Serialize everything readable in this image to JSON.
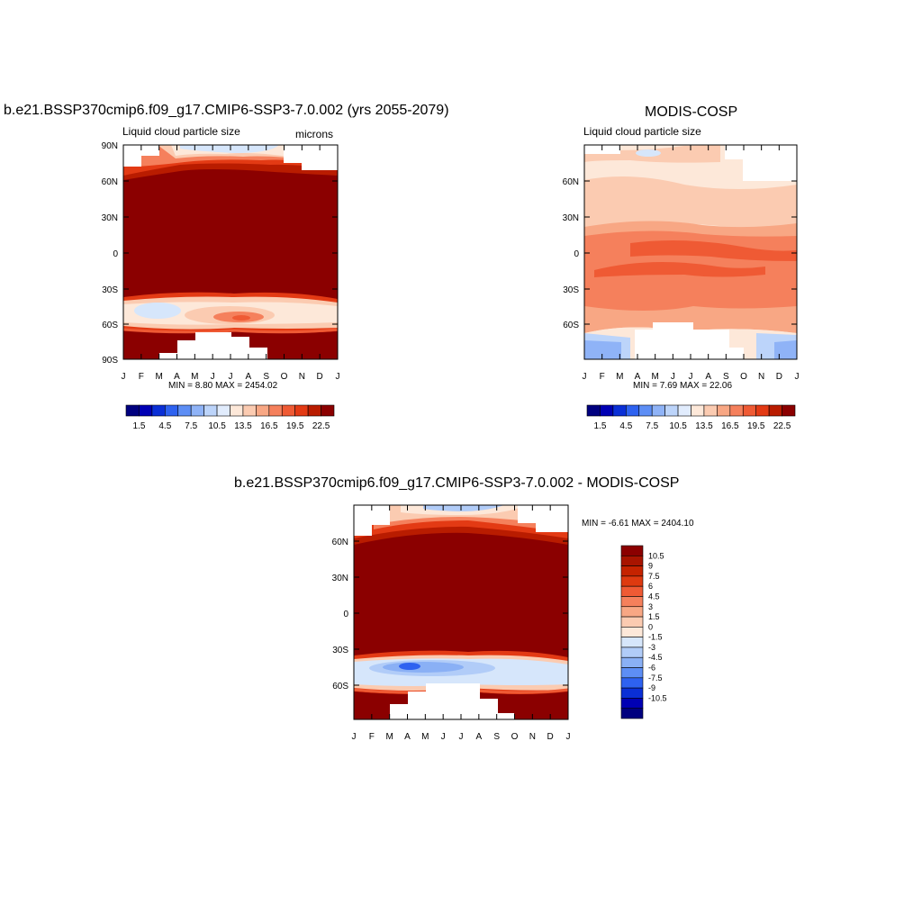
{
  "chart_data": [
    {
      "type": "heatmap",
      "title": "b.e21.BSSP370cmip6.f09_g17.CMIP6-SSP3-7.0.002 (yrs 2055-2079)",
      "subtitle": "Liquid cloud particle size",
      "units": "microns",
      "min_max_text": "MIN =   8.80 MAX = 2454.02",
      "x_ticks": [
        "J",
        "F",
        "M",
        "A",
        "M",
        "J",
        "J",
        "A",
        "S",
        "O",
        "N",
        "D",
        "J"
      ],
      "y_ticks": [
        "90N",
        "60N",
        "30N",
        "0",
        "30S",
        "60S",
        "90S"
      ],
      "colorbar": {
        "orientation": "horizontal",
        "labels": [
          "1.5",
          "4.5",
          "7.5",
          "10.5",
          "13.5",
          "16.5",
          "19.5",
          "22.5"
        ],
        "colors": [
          "#00007f",
          "#0000b4",
          "#0a2fd6",
          "#2e62f0",
          "#5d8ef5",
          "#8fb3f7",
          "#bcd4fa",
          "#e1ecfd",
          "#fde8d9",
          "#fbcbb1",
          "#f8a784",
          "#f5805c",
          "#ef5a34",
          "#e33a14",
          "#b91c00",
          "#8b0000"
        ]
      },
      "colors": {
        "high": "#8b0000",
        "low_mid": "#fde2cf",
        "cool": "#d6e6fb"
      },
      "note": "Model field: saturated red (>22.5) between ~55N and ~40S; lighter bands near 60-90N and 40-65S; missing values near poles in polar night."
    },
    {
      "type": "heatmap",
      "title": "MODIS-COSP",
      "subtitle": "Liquid cloud particle size",
      "min_max_text": "MIN =   7.69 MAX =  22.06",
      "x_ticks": [
        "J",
        "F",
        "M",
        "A",
        "M",
        "J",
        "J",
        "A",
        "S",
        "O",
        "N",
        "D",
        "J"
      ],
      "y_ticks": [
        "60N",
        "30N",
        "0",
        "30S",
        "60S"
      ],
      "colorbar": {
        "orientation": "horizontal",
        "labels": [
          "1.5",
          "4.5",
          "7.5",
          "10.5",
          "13.5",
          "16.5",
          "19.5",
          "22.5"
        ],
        "colors": [
          "#00007f",
          "#0000b4",
          "#0a2fd6",
          "#2e62f0",
          "#5d8ef5",
          "#8fb3f7",
          "#bcd4fa",
          "#e1ecfd",
          "#fde8d9",
          "#fbcbb1",
          "#f8a784",
          "#f5805c",
          "#ef5a34",
          "#e33a14",
          "#b91c00",
          "#8b0000"
        ]
      },
      "colors": {
        "high": "#f5805c",
        "mid": "#fbcbb1",
        "low": "#fde8d9",
        "cool": "#bcd4fa"
      },
      "note": "Observations: 13.5-19.5 microns over tropics and southern mid-latitudes, lighter toward poles, cooler values near 70-80S."
    },
    {
      "type": "heatmap",
      "title": "b.e21.BSSP370cmip6.f09_g17.CMIP6-SSP3-7.0.002 - MODIS-COSP",
      "min_max_text": "MIN =  -6.61 MAX = 2404.10",
      "x_ticks": [
        "J",
        "F",
        "M",
        "A",
        "M",
        "J",
        "J",
        "A",
        "S",
        "O",
        "N",
        "D",
        "J"
      ],
      "y_ticks": [
        "60N",
        "30N",
        "0",
        "30S",
        "60S"
      ],
      "colorbar": {
        "orientation": "vertical",
        "labels": [
          "10.5",
          "9",
          "7.5",
          "6",
          "4.5",
          "3",
          "1.5",
          "0",
          "-1.5",
          "-3",
          "-4.5",
          "-6",
          "-7.5",
          "-9",
          "-10.5"
        ],
        "colors": [
          "#8b0000",
          "#a81400",
          "#c52300",
          "#de3a10",
          "#ef5a34",
          "#f5805c",
          "#f8a784",
          "#fbcbb1",
          "#fde8d9",
          "#d6e6fb",
          "#b1ccf8",
          "#8ab0f5",
          "#5d8ef5",
          "#2e62f0",
          "#0a2fd6",
          "#0000b4",
          "#00007f"
        ]
      },
      "colors": {
        "high": "#8b0000",
        "cool": "#b1ccf8",
        "deep_cool": "#2e62f0"
      },
      "note": "Difference: large positive bias across tropics and mid-latitudes; negative band near 40-60S with minimum around April."
    }
  ]
}
